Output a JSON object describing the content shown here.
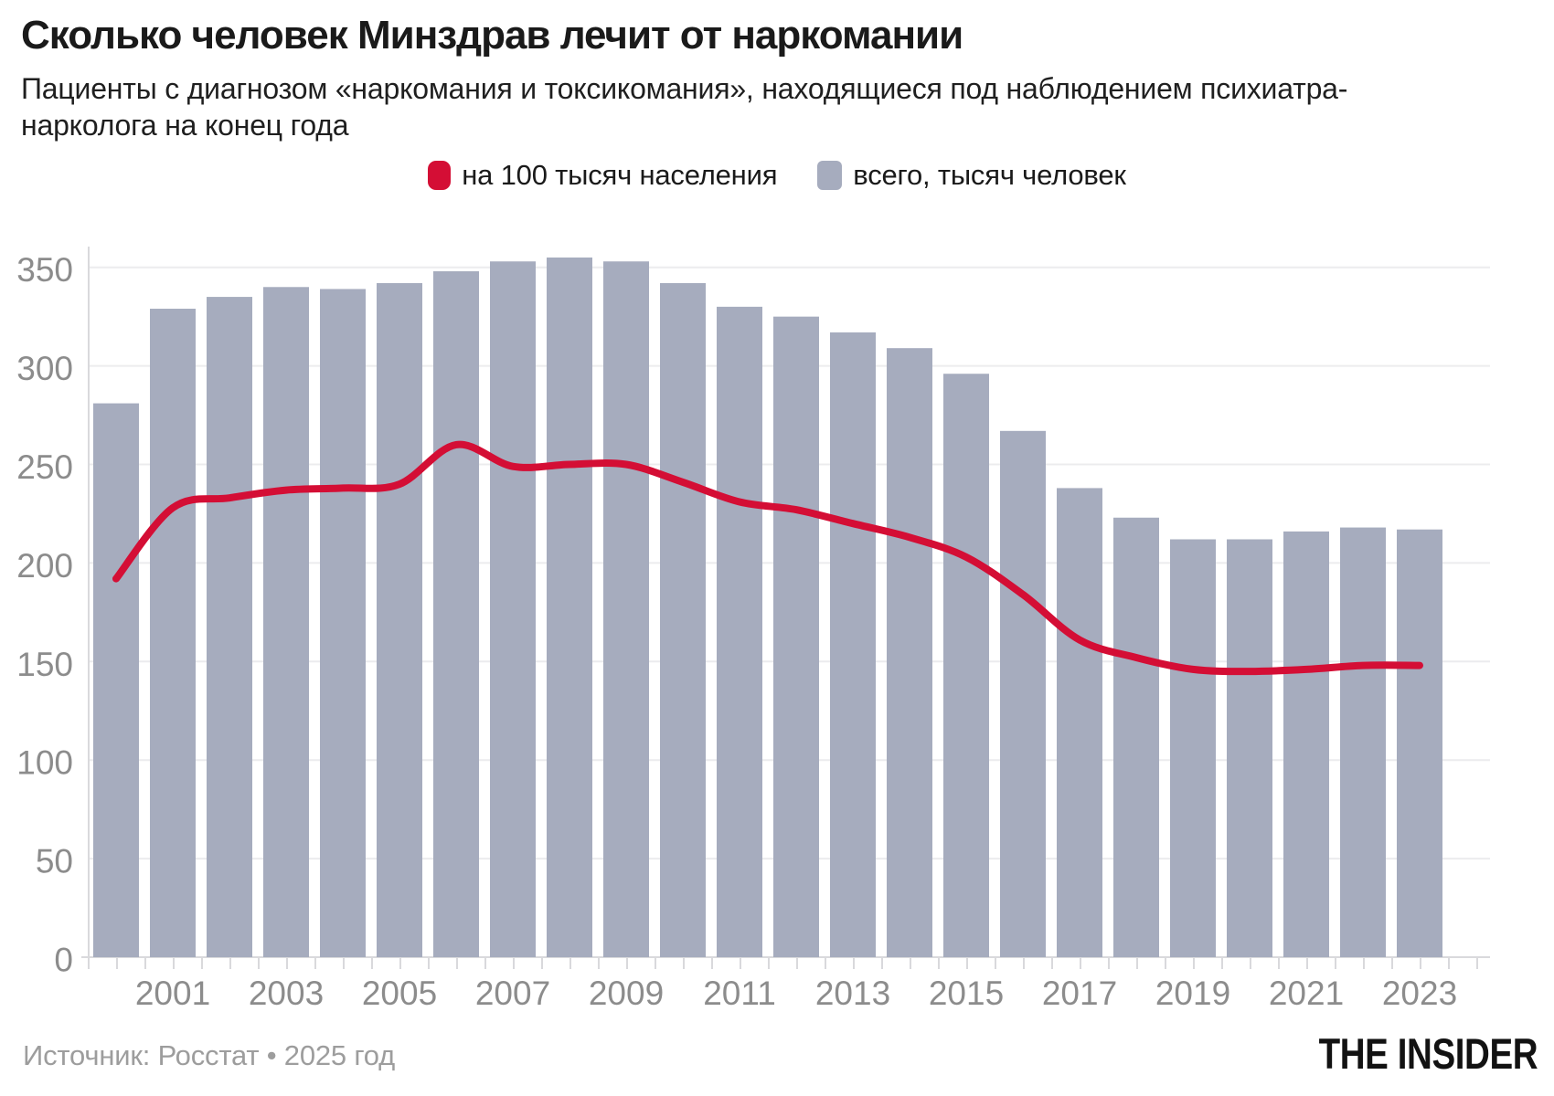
{
  "header": {
    "title": "Сколько человек Минздрав лечит от наркомании",
    "subtitle": "Пациенты с диагнозом «наркомания и токсикомания», находящиеся под наблюдением психиатра-нарколога на конец года"
  },
  "legend": [
    {
      "label": "на 100 тысяч населения",
      "color": "#d40e35",
      "shape": "rounded"
    },
    {
      "label": "всего, тысяч человек",
      "color": "#a6acbe",
      "shape": "square"
    }
  ],
  "colors": {
    "bar": "#a6acbe",
    "line": "#d40e35",
    "grid": "#ececee",
    "axis": "#d9d9dc",
    "axis_text": "#8c8c8c",
    "title_text": "#1a1a1a",
    "source_text": "#9d9d9d"
  },
  "chart_data": {
    "type": "bar",
    "title": "Сколько человек Минздрав лечит от наркомании",
    "xlabel": "",
    "ylabel": "",
    "categories": [
      2000,
      2001,
      2002,
      2003,
      2004,
      2005,
      2006,
      2007,
      2008,
      2009,
      2010,
      2011,
      2012,
      2013,
      2014,
      2015,
      2016,
      2017,
      2018,
      2019,
      2020,
      2021,
      2022,
      2023
    ],
    "series": [
      {
        "name": "всего, тысяч человек",
        "type": "bar",
        "color": "#a6acbe",
        "values": [
          281,
          329,
          335,
          340,
          339,
          342,
          348,
          353,
          355,
          353,
          342,
          330,
          325,
          317,
          309,
          296,
          267,
          238,
          223,
          212,
          212,
          216,
          218,
          217
        ]
      },
      {
        "name": "на 100 тысяч населения",
        "type": "line",
        "color": "#d40e35",
        "values": [
          192,
          228,
          233,
          237,
          238,
          240,
          260,
          249,
          250,
          250,
          241,
          231,
          227,
          220,
          213,
          203,
          184,
          161,
          152,
          146,
          145,
          146,
          148,
          148
        ]
      }
    ],
    "ylim": [
      0,
      350
    ],
    "yticks": [
      0,
      50,
      100,
      150,
      200,
      250,
      300,
      350
    ],
    "xtick_labels": [
      "2001",
      "2003",
      "2005",
      "2007",
      "2009",
      "2011",
      "2013",
      "2015",
      "2017",
      "2019",
      "2021",
      "2023"
    ],
    "grid": true,
    "legend_position": "top"
  },
  "footer": {
    "source": "Источник: Росстат • 2025 год",
    "logo": "THE INSIDER"
  }
}
